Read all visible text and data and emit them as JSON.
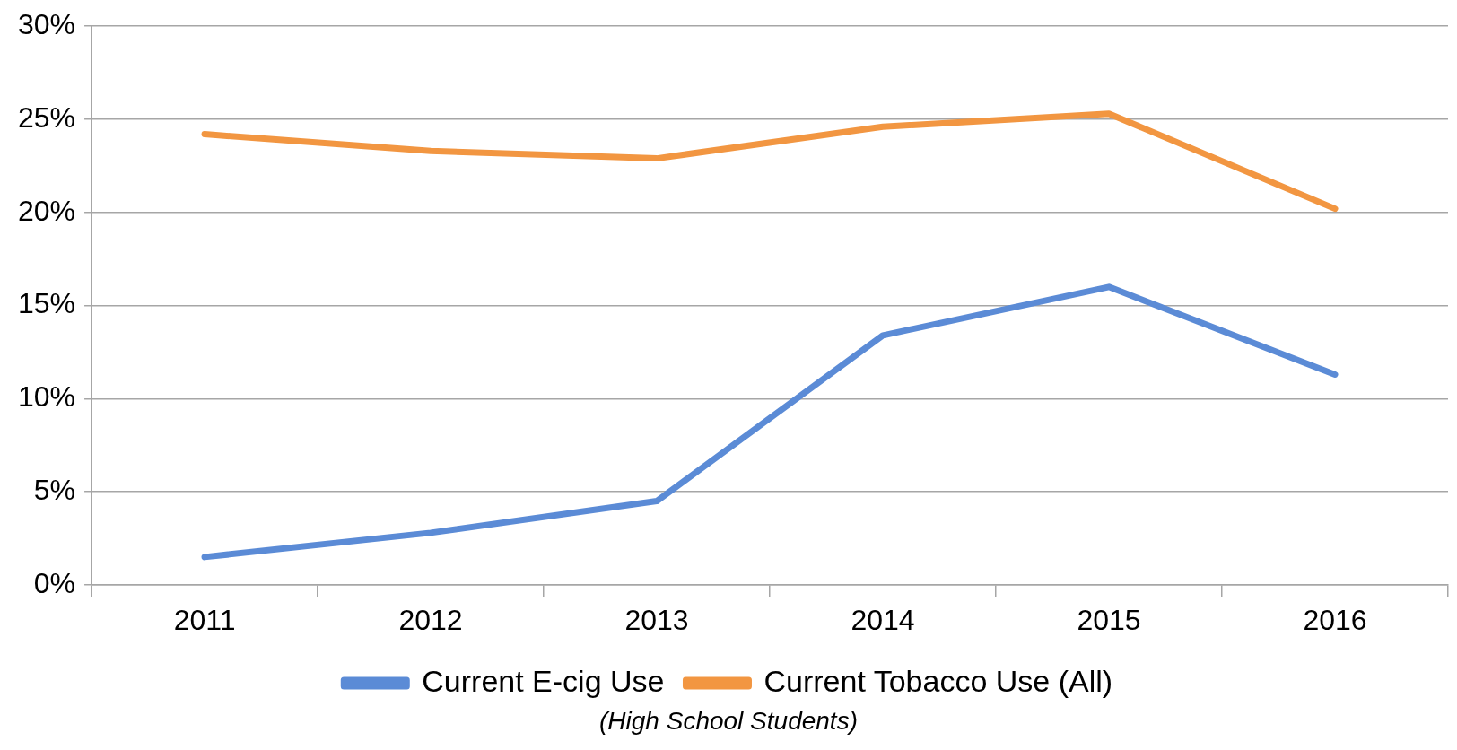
{
  "chart_data": {
    "type": "line",
    "categories": [
      "2011",
      "2012",
      "2013",
      "2014",
      "2015",
      "2016"
    ],
    "series": [
      {
        "name": "Current E-cig Use",
        "color": "#5b8bd6",
        "values": [
          1.5,
          2.8,
          4.5,
          13.4,
          16.0,
          11.3
        ]
      },
      {
        "name": "Current Tobacco Use (All)",
        "color": "#f29641",
        "values": [
          24.2,
          23.3,
          22.9,
          24.6,
          25.3,
          20.2
        ]
      }
    ],
    "ylim": [
      0,
      30
    ],
    "yticks": [
      {
        "value": 0,
        "label": "0%"
      },
      {
        "value": 5,
        "label": "5%"
      },
      {
        "value": 10,
        "label": "10%"
      },
      {
        "value": 15,
        "label": "15%"
      },
      {
        "value": 20,
        "label": "20%"
      },
      {
        "value": 25,
        "label": "25%"
      },
      {
        "value": 30,
        "label": "30%"
      }
    ],
    "grid": "y",
    "legend": "bottom",
    "marker": "none",
    "line_style": "solid",
    "annotations": [
      "(High School Students)"
    ]
  }
}
